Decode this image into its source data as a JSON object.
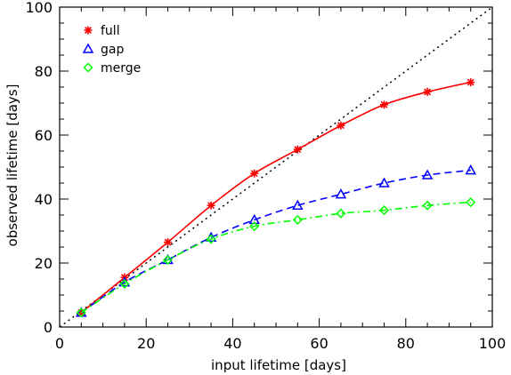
{
  "chart_data": {
    "type": "line",
    "title": "",
    "xlabel": "input lifetime [days]",
    "ylabel": "observed lifetime [days]",
    "xlim": [
      0,
      100
    ],
    "ylim": [
      0,
      100
    ],
    "x_ticks": [
      0,
      20,
      40,
      60,
      80,
      100
    ],
    "y_ticks": [
      0,
      20,
      40,
      60,
      80,
      100
    ],
    "grid": false,
    "legend_position": "top-left",
    "reference_line": {
      "style": "dotted",
      "color": "#000000",
      "from": [
        0,
        0
      ],
      "to": [
        100,
        100
      ]
    },
    "x": [
      5,
      15,
      25,
      35,
      45,
      55,
      65,
      75,
      85,
      95
    ],
    "series": [
      {
        "name": "full",
        "color": "#ff0000",
        "line_style": "solid",
        "marker": "asterisk",
        "values": [
          4.5,
          15.5,
          26.5,
          38,
          48,
          55.5,
          63,
          69.5,
          73.5,
          76.5
        ]
      },
      {
        "name": "gap",
        "color": "#0000ff",
        "line_style": "dashed",
        "marker": "triangle",
        "values": [
          4.5,
          14,
          21,
          28,
          33.5,
          38,
          41.5,
          45,
          47.5,
          49
        ]
      },
      {
        "name": "merge",
        "color": "#00ff00",
        "line_style": "dashdot",
        "marker": "diamond",
        "values": [
          4.5,
          13.5,
          21,
          27.5,
          31.5,
          33.5,
          35.5,
          36.5,
          38,
          39
        ]
      }
    ]
  }
}
